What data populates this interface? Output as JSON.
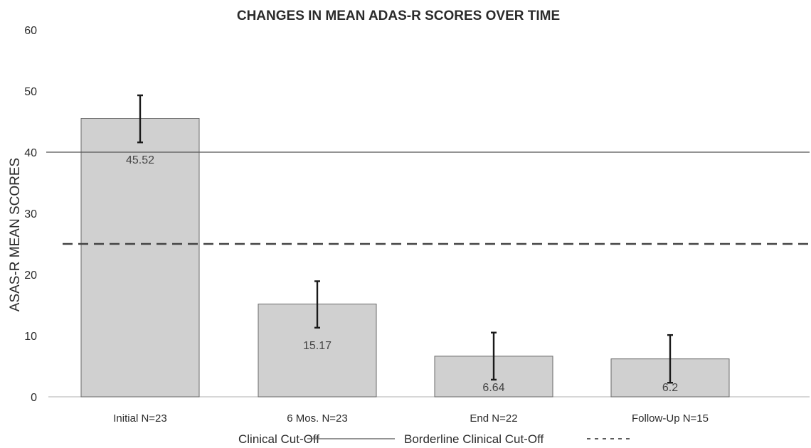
{
  "chart_data": {
    "type": "bar",
    "title": "CHANGES IN MEAN ADAS-R SCORES OVER TIME",
    "xlabel": "",
    "ylabel": "ASAS-R MEAN SCORES",
    "categories": [
      "Initial N=23",
      "6 Mos. N=23",
      "End N=22",
      "Follow-Up N=15"
    ],
    "values": [
      45.52,
      15.17,
      6.64,
      6.2
    ],
    "data_labels": [
      "45.52",
      "15.17",
      "6.64",
      "6.2"
    ],
    "error_bars": [
      {
        "low": 41.6,
        "high": 49.3
      },
      {
        "low": 11.3,
        "high": 18.9
      },
      {
        "low": 2.8,
        "high": 10.5
      },
      {
        "low": 2.3,
        "high": 10.1
      }
    ],
    "ylim": [
      0,
      60
    ],
    "yticks": [
      0,
      10,
      20,
      30,
      40,
      50,
      60
    ],
    "ytick_labels": [
      "0",
      "10",
      "20",
      "30",
      "40",
      "50",
      "60"
    ],
    "reference_lines": [
      {
        "value": 40,
        "style": "solid",
        "label": "Clinical Cut-Off"
      },
      {
        "value": 25,
        "style": "dashed",
        "label": "Borderline Clinical Cut-Off"
      }
    ],
    "legend": {
      "placement": "bottom",
      "entries": [
        {
          "label": "Clinical Cut-Off",
          "style": "solid"
        },
        {
          "label": "Borderline Clinical Cut-Off",
          "style": "dashed"
        }
      ]
    },
    "grid": false,
    "colors": {
      "bar_fill": "#d0d0d0",
      "bar_stroke": "#6a6a6a",
      "error_bar": "#1a1a1a",
      "solid_line": "#555555",
      "dashed_line": "#444444",
      "axis": "#bfbfbf"
    }
  }
}
